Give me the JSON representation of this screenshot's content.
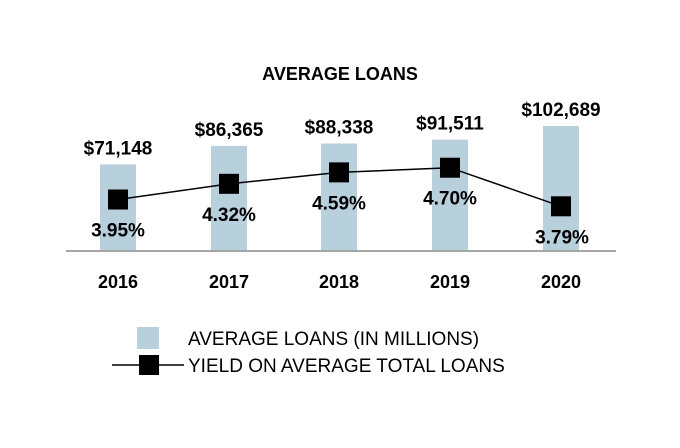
{
  "chart_data": {
    "type": "bar",
    "title": "AVERAGE LOANS",
    "categories": [
      "2016",
      "2017",
      "2018",
      "2019",
      "2020"
    ],
    "series": [
      {
        "name": "AVERAGE LOANS (IN MILLIONS)",
        "type": "bar",
        "values": [
          71148,
          86365,
          88338,
          91511,
          102689
        ],
        "labels": [
          "$71,148",
          "$86,365",
          "$88,338",
          "$91,511",
          "$102,689"
        ],
        "color": "#b8cfdc"
      },
      {
        "name": "YIELD ON AVERAGE TOTAL LOANS",
        "type": "line",
        "values": [
          3.95,
          4.32,
          4.59,
          4.7,
          3.79
        ],
        "labels": [
          "3.95%",
          "4.32%",
          "4.59%",
          "4.70%",
          "3.79%"
        ],
        "color": "#000000",
        "marker": "square"
      }
    ],
    "legend_position": "bottom",
    "grid": false
  }
}
